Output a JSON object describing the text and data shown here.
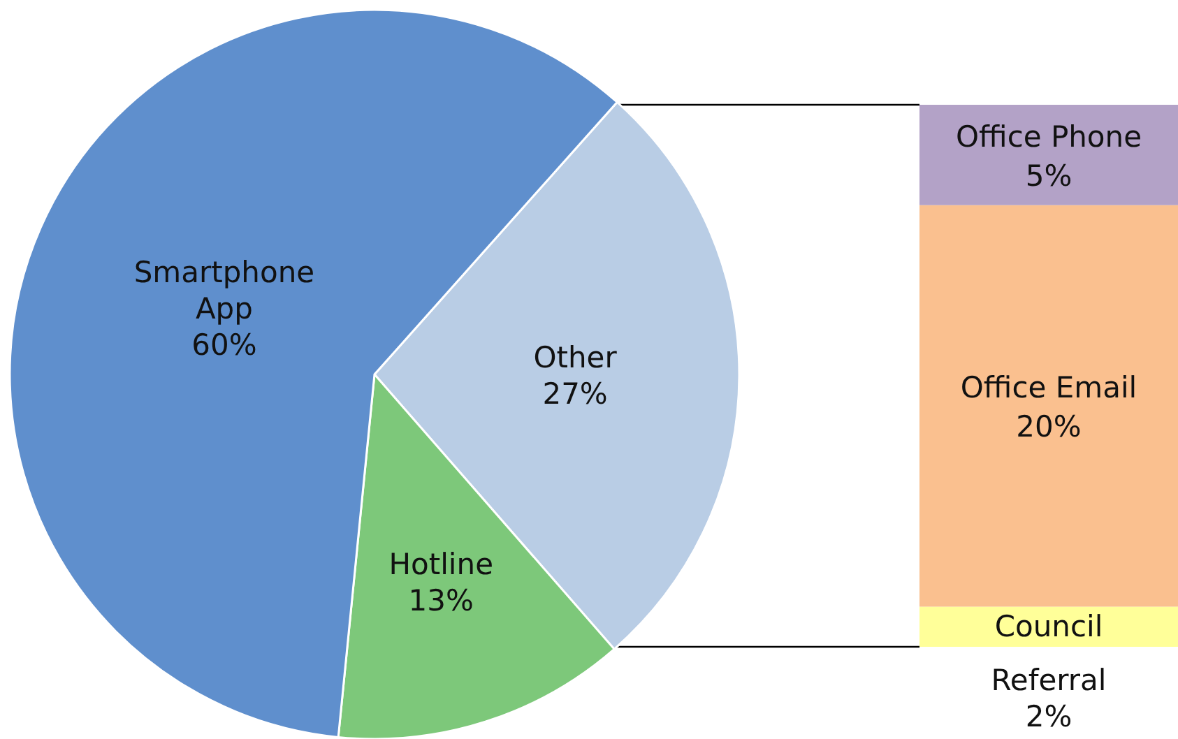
{
  "chart_data": [
    {
      "type": "pie",
      "categories": [
        "Other",
        "Hotline",
        "Smartphone App"
      ],
      "values": [
        27,
        13,
        60
      ],
      "colors": [
        "#b9cde5",
        "#7dc87a",
        "#5f8fcd"
      ],
      "value_labels": [
        "27%",
        "13%",
        "60%"
      ]
    },
    {
      "type": "bar",
      "stacked": true,
      "categories": [
        null
      ],
      "series": [
        {
          "name": "Council Referral",
          "color": "#ffff99",
          "values": [
            2
          ],
          "value_labels": [
            "2%"
          ]
        },
        {
          "name": "Office Email",
          "color": "#fac08f",
          "values": [
            20
          ],
          "value_labels": [
            "20%"
          ]
        },
        {
          "name": "Office Phone",
          "color": "#b3a2c7",
          "values": [
            5
          ],
          "value_labels": [
            "5%"
          ]
        }
      ]
    }
  ]
}
